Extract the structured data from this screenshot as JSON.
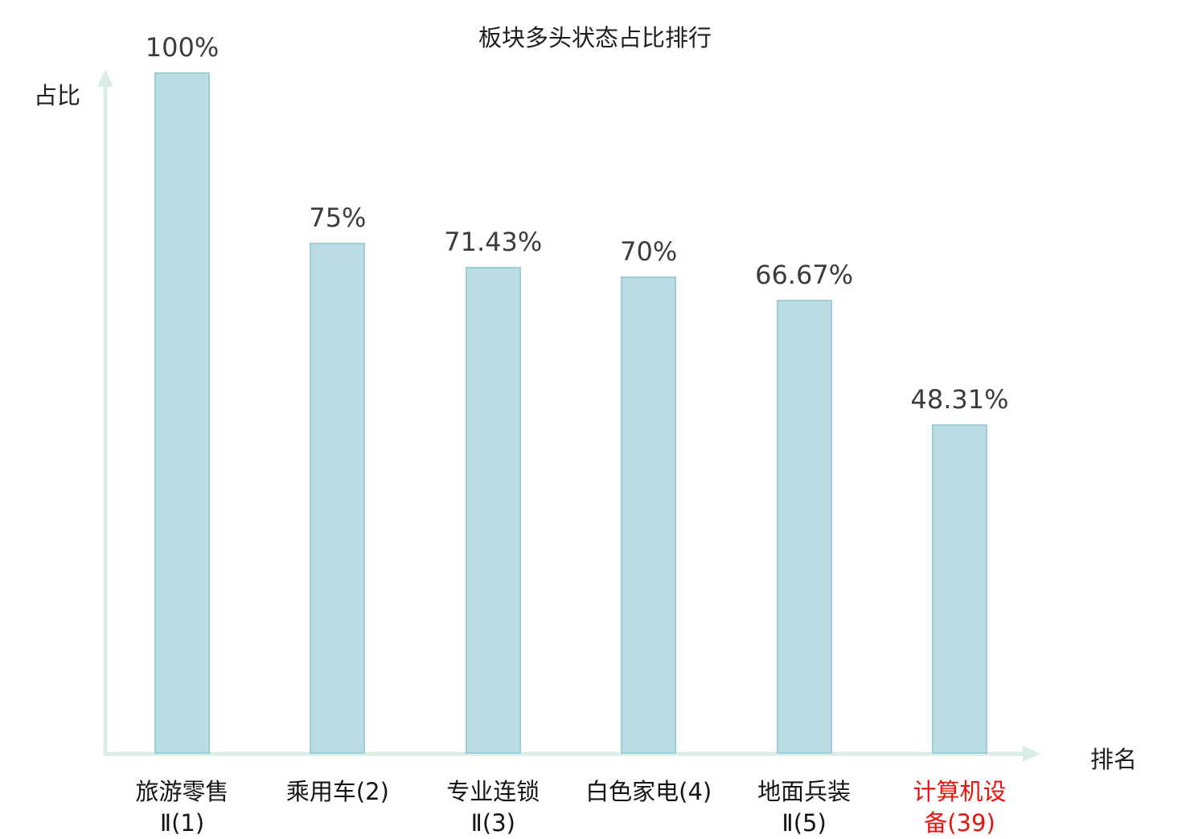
{
  "colors": {
    "bar_fill": "#bada4",
    "bar_fill_hex": "#b9dde3",
    "bar_border": "#9bced7",
    "axis": "#d9ede5",
    "value_label": "#3c3c3c",
    "category_label": "#141414",
    "highlight_label": "#e8130d",
    "title": "#1f1f1f"
  },
  "chart_data": {
    "type": "bar",
    "title": "板块多头状态占比排行",
    "xlabel": "排名",
    "ylabel": "占比",
    "ylim": [
      0,
      100
    ],
    "grid": false,
    "legend": "none",
    "categories": [
      "旅游零售Ⅱ(1)",
      "乘用车(2)",
      "专业连锁Ⅱ(3)",
      "白色家电(4)",
      "地面兵装Ⅱ(5)",
      "计算机设备(39)"
    ],
    "values": [
      100,
      75,
      71.43,
      70,
      66.67,
      48.31
    ],
    "value_labels": [
      "100%",
      "75%",
      "71.43%",
      "70%",
      "66.67%",
      "48.31%"
    ],
    "category_label_lines": [
      [
        "旅游零售",
        "Ⅱ(1)"
      ],
      [
        "乘用车(2)"
      ],
      [
        "专业连锁",
        "Ⅱ(3)"
      ],
      [
        "白色家电(4)"
      ],
      [
        "地面兵装",
        "Ⅱ(5)"
      ],
      [
        "计算机设",
        "备(39)"
      ]
    ],
    "highlight_index": 5
  }
}
